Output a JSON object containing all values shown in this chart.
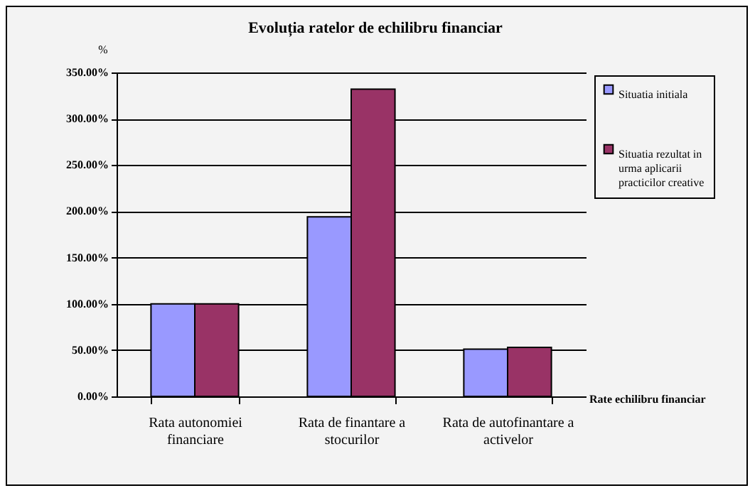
{
  "chart_data": {
    "type": "bar",
    "title": "Evoluția ratelor de echilibru financiar",
    "xlabel": "Rate echilibru financiar",
    "ylabel": "%",
    "categories": [
      "Rata autonomiei financiare",
      "Rata de finantare a stocurilor",
      "Rata de autofinantare a activelor"
    ],
    "series": [
      {
        "name": "Situatia initiala",
        "color": "#9999ff",
        "values": [
          100,
          194,
          51
        ]
      },
      {
        "name": "Situatia rezultat in urma aplicarii practicilor creative",
        "color": "#993366",
        "values": [
          100,
          332,
          53
        ]
      }
    ],
    "ylim": [
      0,
      350
    ],
    "yticks": [
      {
        "value": 0,
        "label": "0.00%"
      },
      {
        "value": 50,
        "label": "50.00%"
      },
      {
        "value": 100,
        "label": "100.00%"
      },
      {
        "value": 150,
        "label": "150.00%"
      },
      {
        "value": 200,
        "label": "200.00%"
      },
      {
        "value": 250,
        "label": "250.00%"
      },
      {
        "value": 300,
        "label": "300.00%"
      },
      {
        "value": 350,
        "label": "350.00%"
      }
    ],
    "grid": "y",
    "legend": "top right"
  }
}
